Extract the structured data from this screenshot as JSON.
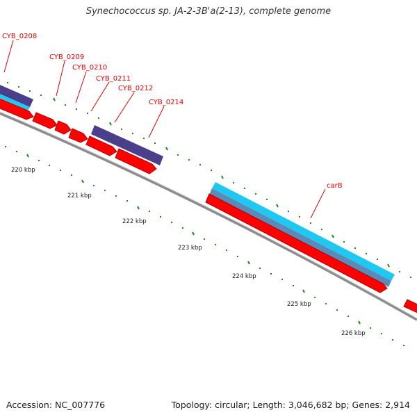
{
  "title": "Synechococcus sp. JA-2-3B'a(2-13), complete genome",
  "accession": "Accession: NC_007776",
  "summary": "Topology: circular; Length: 3,046,682 bp; Genes: 2,914",
  "scale_labels": [
    "220 kbp",
    "221 kbp",
    "222 kbp",
    "223 kbp",
    "224 kbp",
    "225 kbp",
    "226 kbp"
  ],
  "gene_labels": [
    "CYB_0208",
    "CYB_0209",
    "CYB_0210",
    "CYB_0211",
    "CYB_0212",
    "CYB_0214",
    "carB"
  ],
  "colors": {
    "cds": "#ff0000",
    "cds_dark": "#b00000",
    "gene_purple": "#4b3f8c",
    "gene_cyan": "#1ec8f0",
    "gene_steelblue": "#5a8ab8",
    "backbone": "#8c8c8c",
    "tick_green": "#1a8a1a",
    "label_red": "#dd0000",
    "text": "#1a1a1a"
  }
}
